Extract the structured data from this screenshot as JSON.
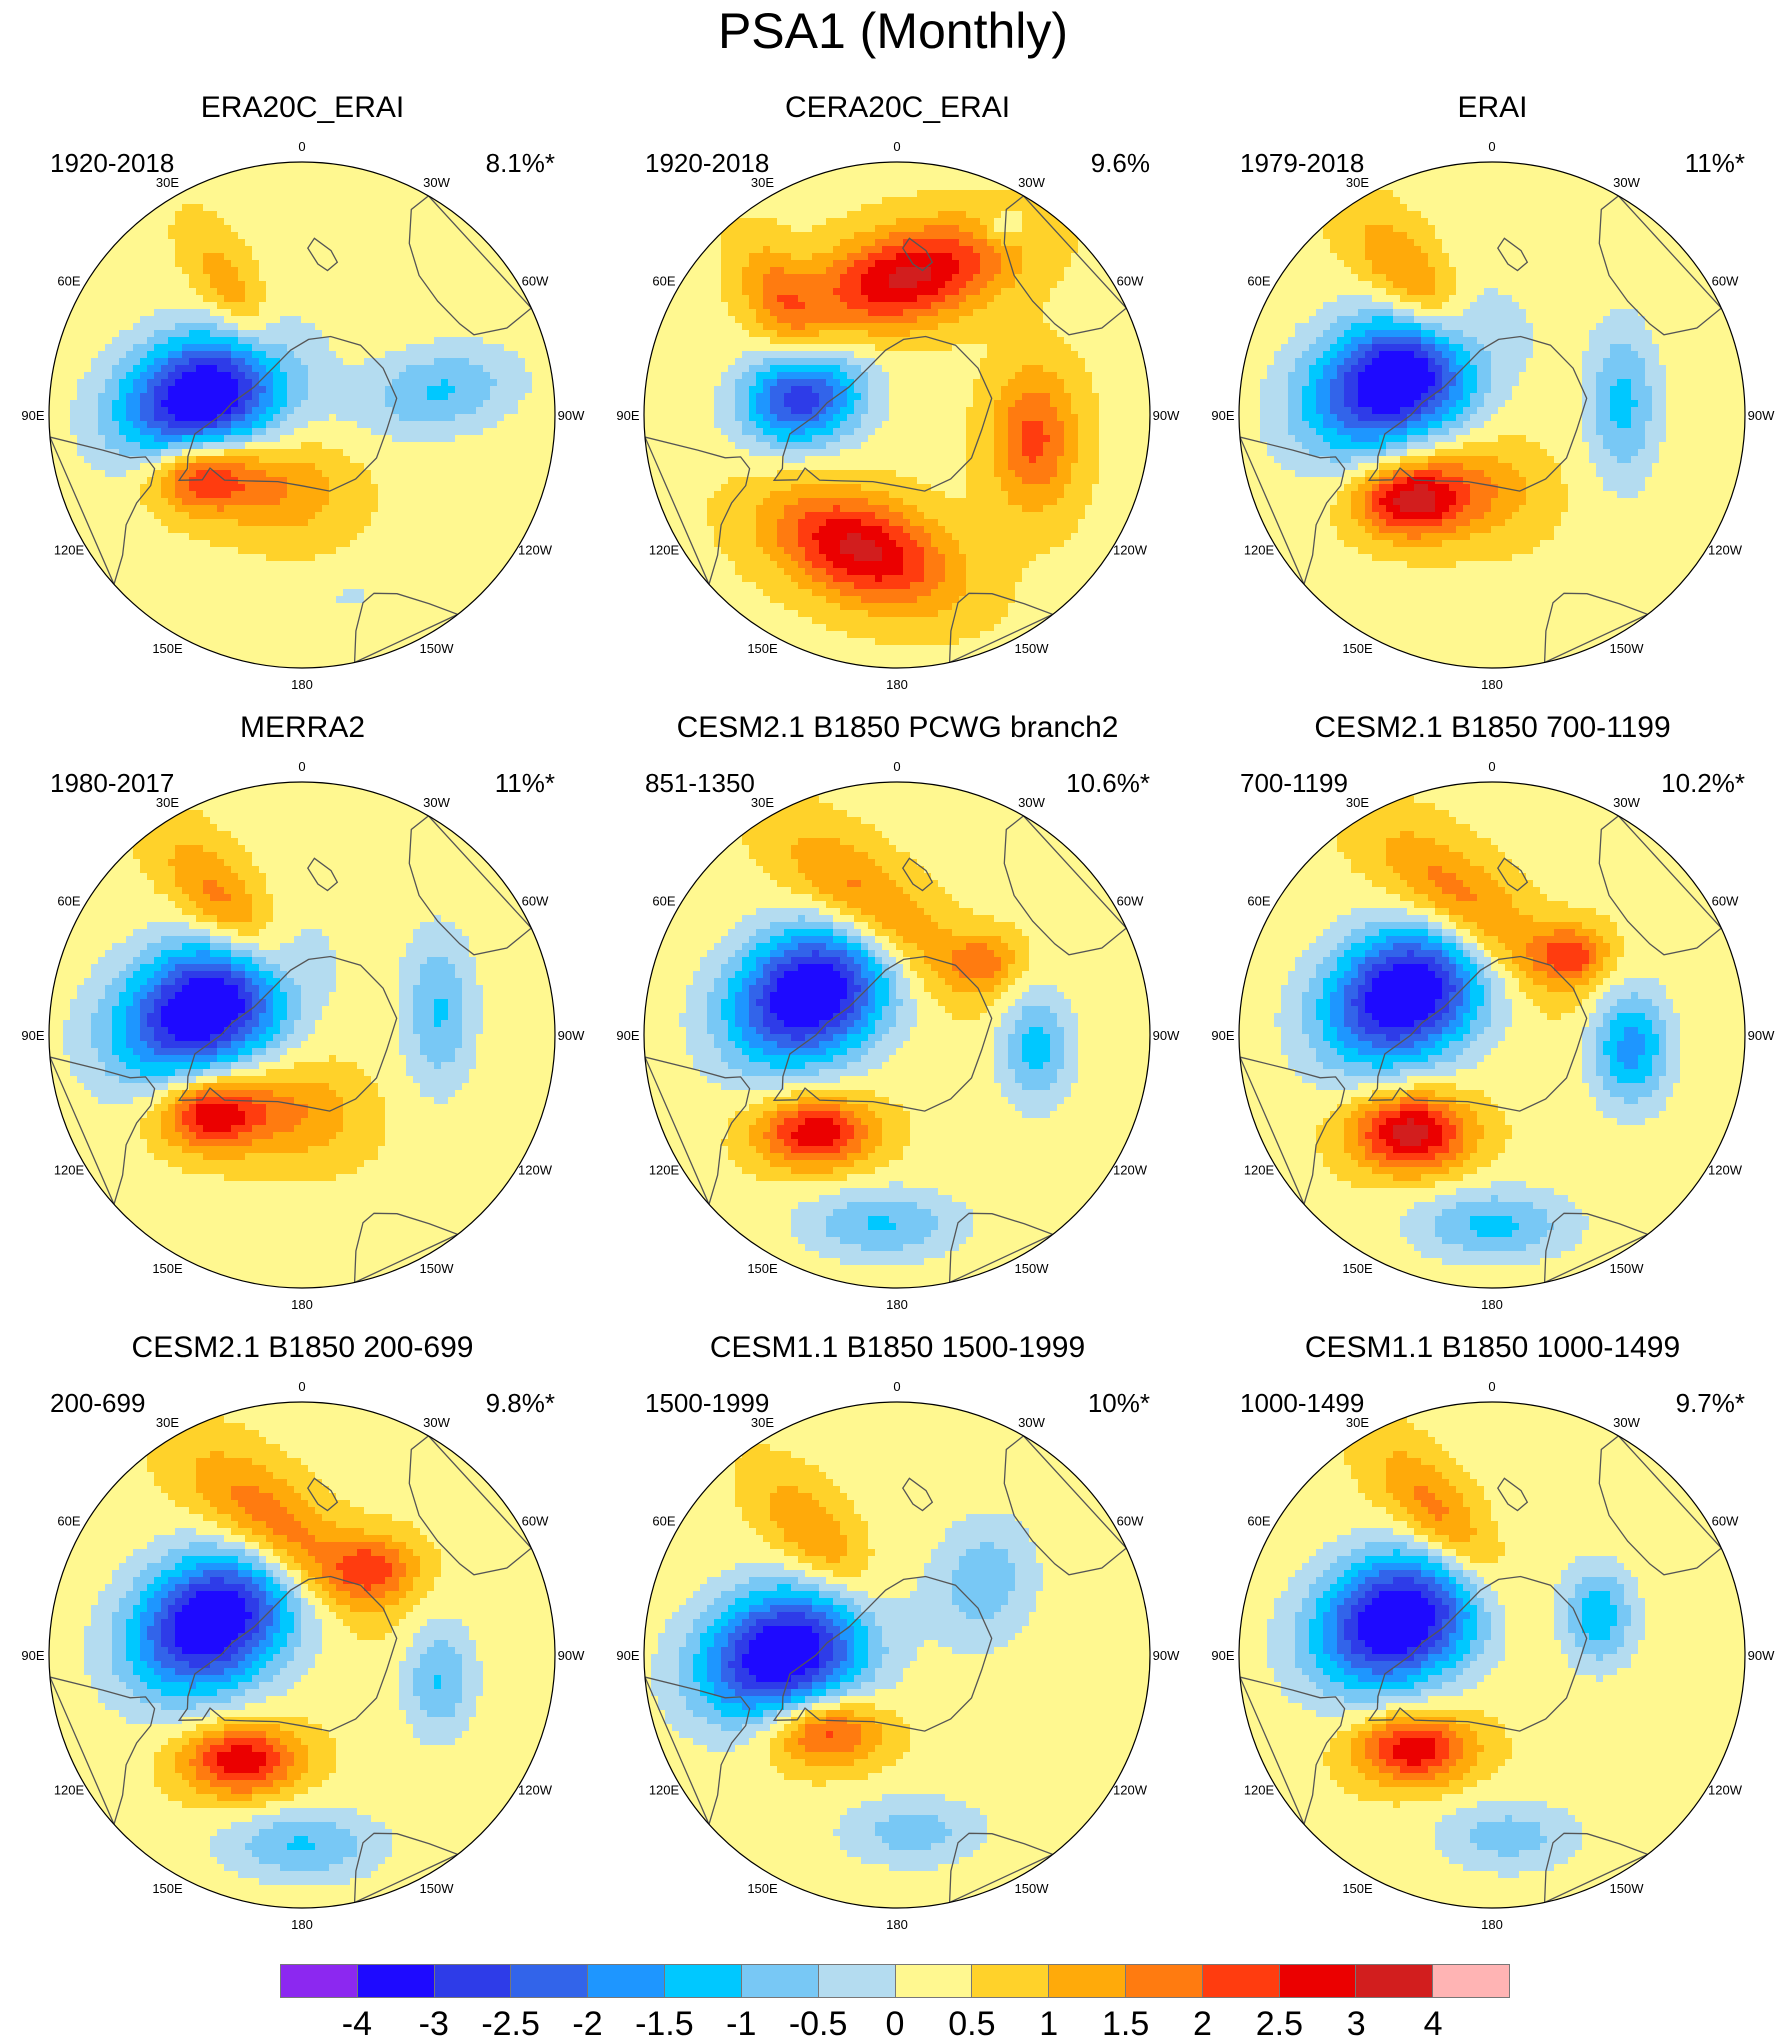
{
  "title": "PSA1 (Monthly)",
  "longitude_labels": [
    "0",
    "30E",
    "60E",
    "90E",
    "120E",
    "150E",
    "180",
    "150W",
    "120W",
    "90W",
    "60W",
    "30W"
  ],
  "panels": [
    {
      "title": "ERA20C_ERAI",
      "period": "1920-2018",
      "variance": "8.1%*",
      "features": [
        {
          "kind": "low",
          "lon": -100,
          "r": 0.4,
          "peak": -4.2,
          "a": 0.24,
          "b": 0.17,
          "rot": -20
        },
        {
          "kind": "high",
          "lon": -60,
          "r": 0.47,
          "peak": 2.4,
          "a": 0.14,
          "b": 0.1,
          "rot": 0
        },
        {
          "kind": "high",
          "lon": -20,
          "r": 0.3,
          "peak": 1.2,
          "a": 0.2,
          "b": 0.14,
          "rot": 10
        },
        {
          "kind": "high",
          "lon": -150,
          "r": 0.55,
          "peak": 1.1,
          "a": 0.2,
          "b": 0.08,
          "rot": 60
        },
        {
          "kind": "low",
          "lon": 100,
          "r": 0.55,
          "peak": -1.4,
          "a": 0.22,
          "b": 0.12,
          "rot": -10
        },
        {
          "kind": "low",
          "lon": 15,
          "r": 0.75,
          "peak": -0.6,
          "a": 0.06,
          "b": 0.03,
          "rot": 0
        }
      ]
    },
    {
      "title": "CERA20C_ERAI",
      "period": "1920-2018",
      "variance": "9.6%",
      "features": [
        {
          "kind": "low",
          "lon": -100,
          "r": 0.38,
          "peak": -3.2,
          "a": 0.17,
          "b": 0.13,
          "rot": -10
        },
        {
          "kind": "high",
          "lon": -15,
          "r": 0.55,
          "peak": 2.8,
          "a": 0.26,
          "b": 0.14,
          "rot": 20
        },
        {
          "kind": "high",
          "lon": 175,
          "r": 0.55,
          "peak": 2.8,
          "a": 0.28,
          "b": 0.13,
          "rot": -15
        },
        {
          "kind": "high",
          "lon": 80,
          "r": 0.55,
          "peak": 1.8,
          "a": 0.12,
          "b": 0.2,
          "rot": 0
        },
        {
          "kind": "high",
          "lon": -135,
          "r": 0.65,
          "peak": 1.2,
          "a": 0.18,
          "b": 0.09,
          "rot": 60
        },
        {
          "kind": "low",
          "lon": 150,
          "r": 0.85,
          "peak": -0.8,
          "a": 0.06,
          "b": 0.05,
          "rot": 0
        }
      ]
    },
    {
      "title": "ERAI",
      "period": "1979-2018",
      "variance": "11%*",
      "features": [
        {
          "kind": "low",
          "lon": -110,
          "r": 0.4,
          "peak": -4.2,
          "a": 0.26,
          "b": 0.18,
          "rot": -25
        },
        {
          "kind": "high",
          "lon": -45,
          "r": 0.48,
          "peak": 2.6,
          "a": 0.14,
          "b": 0.1,
          "rot": 0
        },
        {
          "kind": "high",
          "lon": -20,
          "r": 0.3,
          "peak": 1.3,
          "a": 0.2,
          "b": 0.14,
          "rot": 10
        },
        {
          "kind": "high",
          "lon": -150,
          "r": 0.55,
          "peak": 1.6,
          "a": 0.26,
          "b": 0.1,
          "rot": 50
        },
        {
          "kind": "low",
          "lon": 95,
          "r": 0.52,
          "peak": -1.5,
          "a": 0.1,
          "b": 0.22,
          "rot": 0
        }
      ]
    },
    {
      "title": "MERRA2",
      "period": "1980-2017",
      "variance": "11%*",
      "features": [
        {
          "kind": "low",
          "lon": -105,
          "r": 0.4,
          "peak": -4.2,
          "a": 0.26,
          "b": 0.18,
          "rot": -25
        },
        {
          "kind": "high",
          "lon": -50,
          "r": 0.48,
          "peak": 2.6,
          "a": 0.14,
          "b": 0.1,
          "rot": 0
        },
        {
          "kind": "high",
          "lon": -10,
          "r": 0.3,
          "peak": 1.2,
          "a": 0.2,
          "b": 0.14,
          "rot": 10
        },
        {
          "kind": "high",
          "lon": -150,
          "r": 0.55,
          "peak": 1.6,
          "a": 0.26,
          "b": 0.1,
          "rot": 50
        },
        {
          "kind": "low",
          "lon": 100,
          "r": 0.55,
          "peak": -1.4,
          "a": 0.1,
          "b": 0.22,
          "rot": 0
        }
      ]
    },
    {
      "title": "CESM2.1 B1850 PCWG branch2",
      "period": "851-1350",
      "variance": "10.6%*",
      "features": [
        {
          "kind": "low",
          "lon": -115,
          "r": 0.38,
          "peak": -4.2,
          "a": 0.24,
          "b": 0.18,
          "rot": -30
        },
        {
          "kind": "high",
          "lon": -40,
          "r": 0.5,
          "peak": 2.6,
          "a": 0.16,
          "b": 0.1,
          "rot": 0
        },
        {
          "kind": "high",
          "lon": -170,
          "r": 0.5,
          "peak": 1.7,
          "a": 0.3,
          "b": 0.12,
          "rot": 40
        },
        {
          "kind": "low",
          "lon": -5,
          "r": 0.75,
          "peak": -1.4,
          "a": 0.1,
          "b": 0.22,
          "rot": 90
        },
        {
          "kind": "low",
          "lon": 85,
          "r": 0.55,
          "peak": -1.6,
          "a": 0.1,
          "b": 0.16,
          "rot": 0
        },
        {
          "kind": "high",
          "lon": 130,
          "r": 0.45,
          "peak": 1.3,
          "a": 0.1,
          "b": 0.08,
          "rot": 0
        }
      ]
    },
    {
      "title": "CESM2.1 B1850 700-1199",
      "period": "700-1199",
      "variance": "10.2%*",
      "features": [
        {
          "kind": "low",
          "lon": -115,
          "r": 0.38,
          "peak": -4.2,
          "a": 0.24,
          "b": 0.18,
          "rot": -30
        },
        {
          "kind": "high",
          "lon": -40,
          "r": 0.5,
          "peak": 3.0,
          "a": 0.16,
          "b": 0.11,
          "rot": 0
        },
        {
          "kind": "high",
          "lon": -170,
          "r": 0.5,
          "peak": 1.8,
          "a": 0.3,
          "b": 0.12,
          "rot": 40
        },
        {
          "kind": "low",
          "lon": 0,
          "r": 0.75,
          "peak": -1.5,
          "a": 0.1,
          "b": 0.22,
          "rot": 90
        },
        {
          "kind": "low",
          "lon": 85,
          "r": 0.55,
          "peak": -2.1,
          "a": 0.11,
          "b": 0.16,
          "rot": 0
        },
        {
          "kind": "high",
          "lon": 135,
          "r": 0.45,
          "peak": 1.8,
          "a": 0.1,
          "b": 0.08,
          "rot": 0
        }
      ]
    },
    {
      "title": "CESM2.1 B1850 200-699",
      "period": "200-699",
      "variance": "9.8%*",
      "features": [
        {
          "kind": "low",
          "lon": -110,
          "r": 0.38,
          "peak": -4.2,
          "a": 0.24,
          "b": 0.18,
          "rot": -30
        },
        {
          "kind": "high",
          "lon": -30,
          "r": 0.48,
          "peak": 2.6,
          "a": 0.16,
          "b": 0.1,
          "rot": 0
        },
        {
          "kind": "high",
          "lon": -170,
          "r": 0.5,
          "peak": 1.8,
          "a": 0.3,
          "b": 0.12,
          "rot": 40
        },
        {
          "kind": "high",
          "lon": 140,
          "r": 0.45,
          "peak": 1.7,
          "a": 0.12,
          "b": 0.09,
          "rot": 0
        },
        {
          "kind": "low",
          "lon": 0,
          "r": 0.75,
          "peak": -1.4,
          "a": 0.1,
          "b": 0.22,
          "rot": 90
        },
        {
          "kind": "low",
          "lon": 80,
          "r": 0.55,
          "peak": -1.4,
          "a": 0.1,
          "b": 0.16,
          "rot": 0
        }
      ]
    },
    {
      "title": "CESM1.1 B1850 1500-1999",
      "period": "1500-1999",
      "variance": "10%*",
      "features": [
        {
          "kind": "low",
          "lon": -90,
          "r": 0.45,
          "peak": -4.2,
          "a": 0.24,
          "b": 0.18,
          "rot": -20
        },
        {
          "kind": "high",
          "lon": -45,
          "r": 0.42,
          "peak": 2.3,
          "a": 0.16,
          "b": 0.1,
          "rot": 0
        },
        {
          "kind": "high",
          "lon": -145,
          "r": 0.55,
          "peak": 1.3,
          "a": 0.22,
          "b": 0.1,
          "rot": 50
        },
        {
          "kind": "low",
          "lon": 5,
          "r": 0.7,
          "peak": -1.1,
          "a": 0.1,
          "b": 0.2,
          "rot": 90
        },
        {
          "kind": "low",
          "lon": 130,
          "r": 0.45,
          "peak": -1.2,
          "a": 0.14,
          "b": 0.18,
          "rot": 10
        }
      ]
    },
    {
      "title": "CESM1.1 B1850 1000-1499",
      "period": "1000-1499",
      "variance": "9.7%*",
      "features": [
        {
          "kind": "low",
          "lon": -110,
          "r": 0.4,
          "peak": -4.2,
          "a": 0.24,
          "b": 0.18,
          "rot": -25
        },
        {
          "kind": "high",
          "lon": -40,
          "r": 0.48,
          "peak": 2.6,
          "a": 0.16,
          "b": 0.1,
          "rot": 0
        },
        {
          "kind": "high",
          "lon": -160,
          "r": 0.55,
          "peak": 1.6,
          "a": 0.26,
          "b": 0.1,
          "rot": 50
        },
        {
          "kind": "low",
          "lon": 5,
          "r": 0.72,
          "peak": -1.1,
          "a": 0.1,
          "b": 0.2,
          "rot": 90
        },
        {
          "kind": "low",
          "lon": 110,
          "r": 0.45,
          "peak": -1.7,
          "a": 0.1,
          "b": 0.14,
          "rot": 0
        }
      ]
    }
  ],
  "colorbar": {
    "labels": [
      "-4",
      "-3",
      "-2.5",
      "-2",
      "-1.5",
      "-1",
      "-0.5",
      "0",
      "0.5",
      "1",
      "1.5",
      "2",
      "2.5",
      "3",
      "4"
    ],
    "levels": [
      -4,
      -3,
      -2.5,
      -2,
      -1.5,
      -1,
      -0.5,
      0,
      0.5,
      1,
      1.5,
      2,
      2.5,
      3,
      4
    ],
    "colors": [
      "#8c28f0",
      "#1e0aff",
      "#2e3ce8",
      "#3264ea",
      "#1e96ff",
      "#00c8ff",
      "#78c8f5",
      "#b4dcf0",
      "#fff890",
      "#ffd22a",
      "#ffaa0a",
      "#ff7b10",
      "#ff3c0f",
      "#eb0000",
      "#d21e1e",
      "#ffb4b4"
    ]
  }
}
